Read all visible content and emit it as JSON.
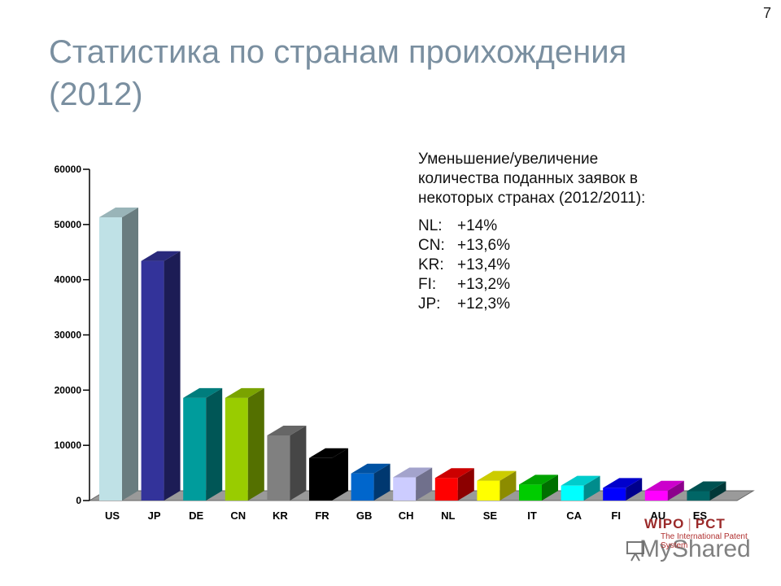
{
  "page_number": "7",
  "title": "Статистика по странам проихождения (2012)",
  "note": {
    "heading": "Уменьшение/увеличение количества поданных заявок в некоторых странах (2012/2011):",
    "items": [
      {
        "code": "NL:",
        "value": "+14%"
      },
      {
        "code": "CN:",
        "value": "+13,6%"
      },
      {
        "code": "KR:",
        "value": "+13,4%"
      },
      {
        "code": "FI:",
        "value": "+13,2%"
      },
      {
        "code": "JP:",
        "value": "+12,3%"
      }
    ]
  },
  "footer": {
    "wipo": "WIPO",
    "pct": "PCT",
    "tagline": "The International Patent System",
    "watermark": "MyShared"
  },
  "chart_data": {
    "type": "bar",
    "title": "",
    "xlabel": "",
    "ylabel": "",
    "ylim": [
      0,
      60000
    ],
    "yticks": [
      0,
      10000,
      20000,
      30000,
      40000,
      50000,
      60000
    ],
    "ytick_labels": [
      "0",
      "10000",
      "20000",
      "30000",
      "40000",
      "50000",
      "60000"
    ],
    "categories": [
      "US",
      "JP",
      "DE",
      "CN",
      "KR",
      "FR",
      "GB",
      "CH",
      "NL",
      "SE",
      "IT",
      "CA",
      "FI",
      "AU",
      "ES"
    ],
    "values": [
      51300,
      43400,
      18600,
      18600,
      11800,
      7700,
      4900,
      4200,
      4100,
      3600,
      2900,
      2700,
      2300,
      1800,
      1700
    ],
    "colors": [
      "#bfe1e6",
      "#33339a",
      "#009c9c",
      "#99cc00",
      "#808080",
      "#000000",
      "#0066cc",
      "#ccccff",
      "#ff0000",
      "#ffff00",
      "#00cc00",
      "#00ffff",
      "#0000ff",
      "#ff00ff",
      "#006666"
    ],
    "style": "3d",
    "grid": false
  }
}
